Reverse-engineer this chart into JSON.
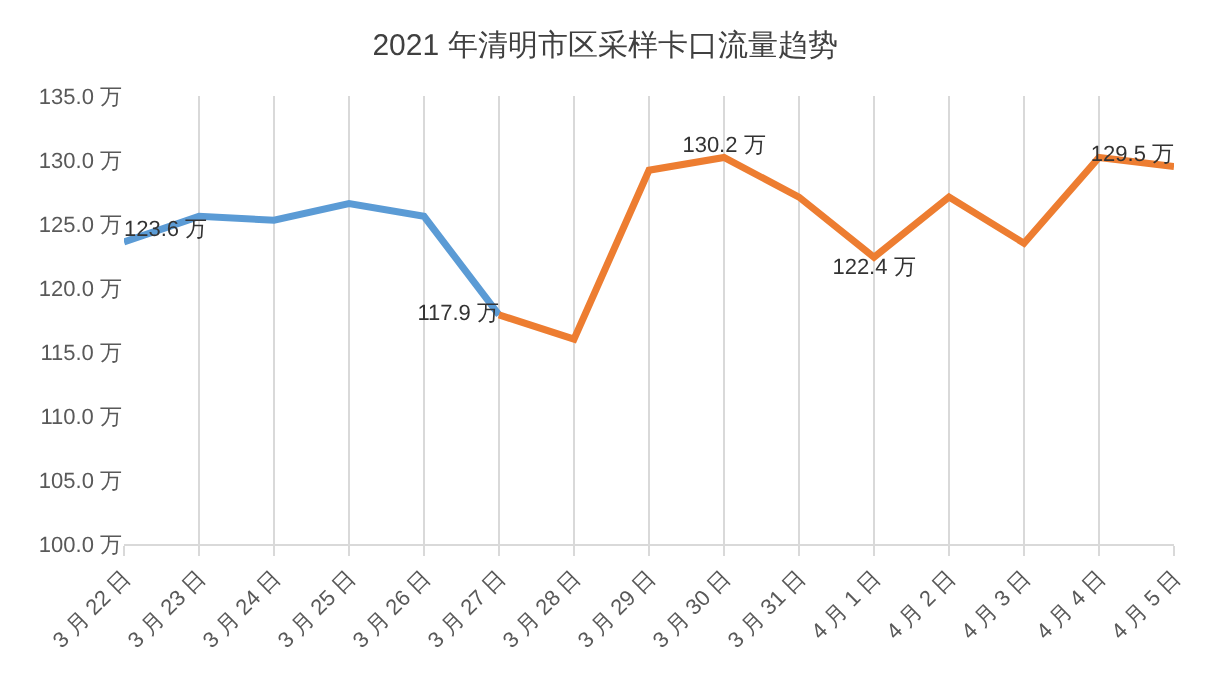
{
  "chart_data": {
    "type": "line",
    "title": "2021 年清明市区采样卡口流量趋势",
    "categories": [
      "3 月 22 日",
      "3 月 23 日",
      "3 月 24 日",
      "3 月 25 日",
      "3 月 26 日",
      "3 月 27 日",
      "3 月 28 日",
      "3 月 29 日",
      "3 月 30 日",
      "3 月 31 日",
      "4 月 1 日",
      "4 月 2 日",
      "4 月 3 日",
      "4 月 4 日",
      "4 月 5 日"
    ],
    "series": [
      {
        "color": "#5b9bd5",
        "values": [
          123.6,
          125.6,
          125.3,
          126.6,
          125.6,
          117.9,
          null,
          null,
          null,
          null,
          null,
          null,
          null,
          null,
          null
        ],
        "value_labels": [
          "123.6 万",
          null,
          null,
          null,
          null,
          null,
          null,
          null,
          null,
          null,
          null,
          null,
          null,
          null,
          null
        ]
      },
      {
        "color": "#ed7d31",
        "values": [
          null,
          null,
          null,
          null,
          null,
          117.9,
          116.0,
          129.2,
          130.2,
          127.1,
          122.4,
          127.1,
          123.5,
          130.2,
          129.5
        ],
        "value_labels": [
          null,
          null,
          null,
          null,
          null,
          "117.9 万",
          null,
          null,
          "130.2 万",
          null,
          "122.4 万",
          null,
          null,
          null,
          "129.5 万"
        ]
      }
    ],
    "ylim": [
      100,
      135
    ],
    "yticks": [
      {
        "value": 100,
        "label": "100.0 万"
      },
      {
        "value": 105,
        "label": "105.0 万"
      },
      {
        "value": 110,
        "label": "110.0 万"
      },
      {
        "value": 115,
        "label": "115.0 万"
      },
      {
        "value": 120,
        "label": "120.0 万"
      },
      {
        "value": 125,
        "label": "125.0 万"
      },
      {
        "value": 130,
        "label": "130.0 万"
      },
      {
        "value": 135,
        "label": "135.0 万"
      }
    ],
    "grid": "x",
    "marker": "none",
    "line_style": "solid"
  }
}
